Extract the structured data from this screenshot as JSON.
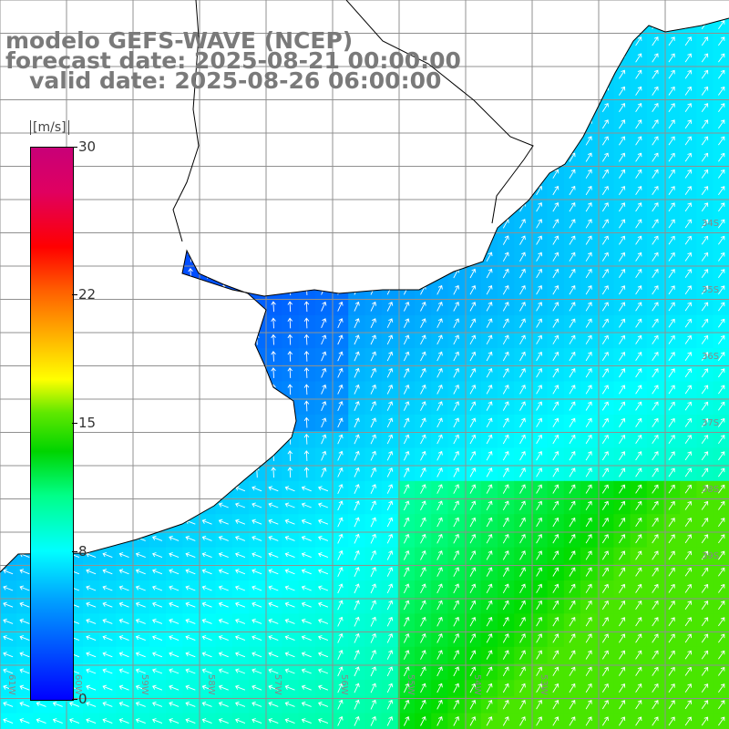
{
  "title": {
    "line1": "modelo GEFS-WAVE (NCEP)",
    "line2": "forecast date: 2025-08-21 00:00:00",
    "line3": "   valid date: 2025-08-26 06:00:00"
  },
  "colorbar": {
    "units": "[m/s]",
    "ticks": [
      "30",
      "22",
      "15",
      "8",
      "0"
    ],
    "tick_values": [
      30,
      22,
      15,
      8,
      0
    ],
    "range": [
      0,
      30
    ]
  },
  "grid": {
    "lat_labels": [
      "34S",
      "35S",
      "36S",
      "37S",
      "38S",
      "39S"
    ],
    "lon_labels": [
      "61W",
      "60W",
      "59W",
      "58W",
      "57W",
      "56W",
      "55W",
      "54W",
      "53W"
    ]
  },
  "colors": {
    "land": "#ffffff",
    "grid": "#909090",
    "coast": "#000000",
    "arrow": "#ffffff",
    "title": "#7a7a7a"
  },
  "field": {
    "variable": "wind speed and direction",
    "units": "m/s",
    "prevailing_direction": "from southwest",
    "speed_range_shown": [
      2,
      14
    ]
  }
}
